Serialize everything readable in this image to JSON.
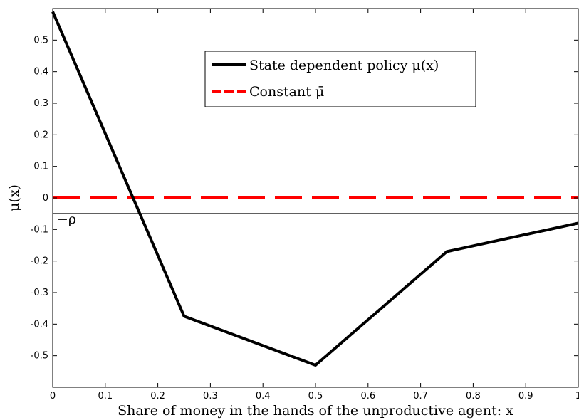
{
  "chart_data": {
    "type": "line",
    "title": "",
    "xlabel": "Share of money in the hands of the unproductive agent: x",
    "ylabel": "μ(x)",
    "xlim": [
      0,
      1
    ],
    "ylim": [
      -0.6,
      0.6
    ],
    "xticks": [
      0,
      0.1,
      0.2,
      0.3,
      0.4,
      0.5,
      0.6,
      0.7,
      0.8,
      0.9,
      1
    ],
    "yticks": [
      -0.5,
      -0.4,
      -0.3,
      -0.2,
      -0.1,
      0,
      0.1,
      0.2,
      0.3,
      0.4,
      0.5
    ],
    "grid": false,
    "legend_position": "top-right",
    "series": [
      {
        "name": "State dependent policy μ(x)",
        "color": "#000000",
        "style": "solid",
        "x": [
          0,
          0.25,
          0.5,
          0.75,
          1
        ],
        "y": [
          0.59,
          -0.375,
          -0.53,
          -0.17,
          -0.08
        ]
      },
      {
        "name": "Constant μ̄",
        "color": "#ff0000",
        "style": "dashed",
        "x": [
          0,
          1
        ],
        "y": [
          0,
          0
        ]
      }
    ],
    "reference_lines": [
      {
        "label": "−ρ",
        "y": -0.05,
        "color": "#000000"
      }
    ]
  }
}
